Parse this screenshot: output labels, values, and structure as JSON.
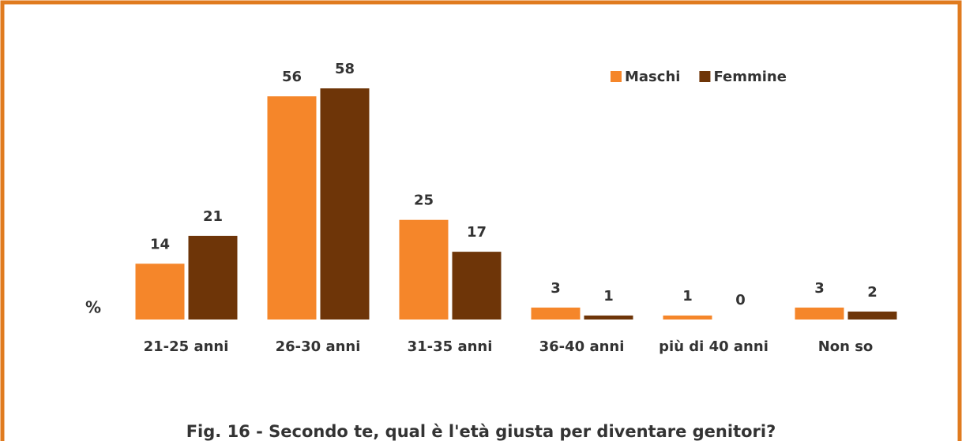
{
  "chart_data": {
    "type": "bar",
    "title": "Fig. 16 - Secondo te, qual è l'età giusta per diventare genitori?",
    "y_label": "%",
    "categories": [
      "21-25 anni",
      "26-30 anni",
      "31-35 anni",
      "36-40 anni",
      "più di 40 anni",
      "Non so"
    ],
    "series": [
      {
        "name": "Maschi",
        "color": "#f5862a",
        "values": [
          14,
          56,
          25,
          3,
          1,
          3
        ]
      },
      {
        "name": "Femmine",
        "color": "#6e3508",
        "values": [
          21,
          58,
          17,
          1,
          0,
          2
        ]
      }
    ],
    "legend": "top-right",
    "grid": false
  }
}
